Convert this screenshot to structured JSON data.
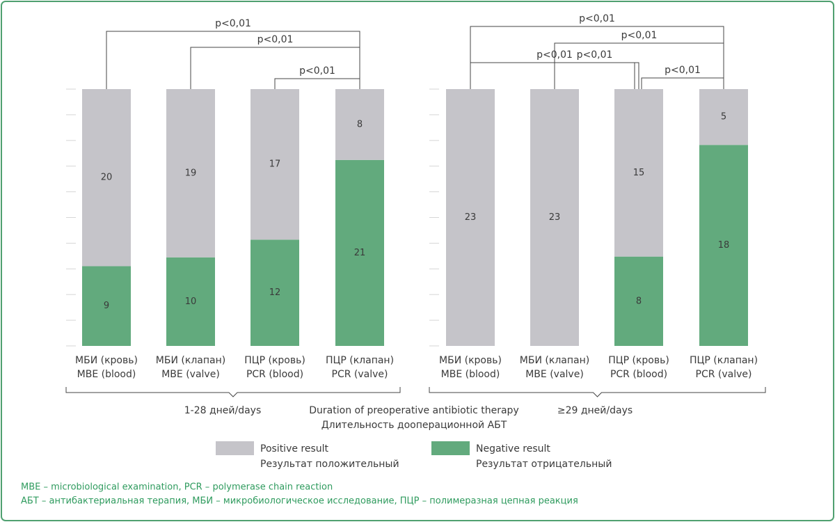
{
  "chart_data": [
    {
      "type": "bar",
      "stacked": true,
      "categories": [
        [
          "МБИ (кровь)",
          "MBE (blood)"
        ],
        [
          "МБИ (клапан)",
          "MBE (valve)"
        ],
        [
          "ПЦР (кровь)",
          "PCR (blood)"
        ],
        [
          "ПЦР (клапан)",
          "PCR (valve)"
        ]
      ],
      "series": [
        {
          "name": "Negative result",
          "name_ru": "Результат отрицательный",
          "color": "#62aa7d",
          "values": [
            9,
            10,
            12,
            21
          ]
        },
        {
          "name": "Positive result",
          "name_ru": "Результат положительный",
          "color": "#c5c4c9",
          "values": [
            20,
            19,
            17,
            8
          ]
        }
      ],
      "ylim": [
        0,
        29
      ],
      "group_label": "1-28 дней/days",
      "annotations": [
        {
          "from": 0,
          "to": 3,
          "label": "p<0,01"
        },
        {
          "from": 1,
          "to": 3,
          "label": "p<0,01"
        },
        {
          "from": 2,
          "to": 3,
          "label": "p<0,01"
        }
      ]
    },
    {
      "type": "bar",
      "stacked": true,
      "categories": [
        [
          "МБИ (кровь)",
          "MBE (blood)"
        ],
        [
          "МБИ (клапан)",
          "MBE (valve)"
        ],
        [
          "ПЦР (кровь)",
          "PCR (blood)"
        ],
        [
          "ПЦР (клапан)",
          "PCR (valve)"
        ]
      ],
      "series": [
        {
          "values": [
            0,
            0,
            8,
            18
          ]
        },
        {
          "values": [
            23,
            23,
            15,
            5
          ]
        }
      ],
      "ylim": [
        0,
        23
      ],
      "group_label": "≥29 дней/days",
      "annotations": [
        {
          "from": 0,
          "to": 3,
          "label": "p<0,01"
        },
        {
          "from": 1,
          "to": 3,
          "label": "p<0,01"
        },
        {
          "from": 0,
          "to": 2,
          "label": "p<0,01"
        },
        {
          "from": 1,
          "to": 2,
          "label": "p<0,01"
        },
        {
          "from": 2,
          "to": 3,
          "label": "p<0,01"
        }
      ]
    }
  ],
  "axis_title": "Duration of preoperative antibiotic therapy",
  "axis_title_ru": "Длительность дооперационной АБТ",
  "footnotes": [
    "MBE – microbiological examination, PCR – polymerase chain reaction",
    "АБТ – антибактериальная терапия, МБИ – микробиологическое исследование, ПЦР – полимеразная цепная реакция"
  ]
}
